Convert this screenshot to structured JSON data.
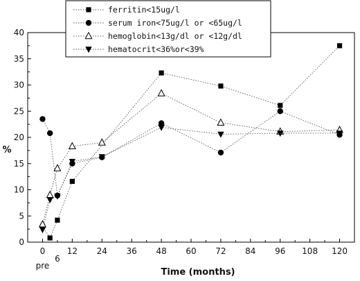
{
  "chart_data": {
    "type": "line",
    "title": "",
    "xlabel": "Time (months)",
    "ylabel": "%",
    "xlim": [
      -6,
      126
    ],
    "ylim": [
      0,
      40
    ],
    "xticks": [
      0,
      12,
      24,
      36,
      48,
      60,
      72,
      84,
      96,
      108,
      120
    ],
    "yticks": [
      0,
      5,
      10,
      15,
      20,
      25,
      30,
      35,
      40
    ],
    "extra_x_labels": [
      {
        "text": "pre",
        "x": 0
      },
      {
        "text": "6",
        "x": 6
      }
    ],
    "grid": false,
    "legend_position": "top-center",
    "series": [
      {
        "name": "ferritin<15ug/l",
        "marker": "square",
        "x": [
          0,
          3,
          6,
          12,
          48,
          72,
          96,
          120
        ],
        "y": [
          3.0,
          0.8,
          4.2,
          11.6,
          32.3,
          29.8,
          26.1,
          37.5
        ]
      },
      {
        "name": "serum iron<75ug/l or <65ug/l",
        "marker": "circle",
        "x": [
          0,
          3,
          6,
          12,
          24,
          48,
          72,
          96,
          120
        ],
        "y": [
          23.5,
          20.8,
          8.9,
          15.0,
          16.2,
          22.7,
          17.1,
          25.0,
          20.5
        ]
      },
      {
        "name": "hemoglobin<13g/dl or <12g/dl",
        "marker": "triangle-open",
        "x": [
          0,
          3,
          6,
          12,
          24,
          48,
          72,
          96,
          120
        ],
        "y": [
          3.4,
          9.0,
          14.1,
          18.3,
          19.0,
          28.4,
          22.8,
          21.1,
          21.4
        ]
      },
      {
        "name": "hematocrit<36%or<39%",
        "marker": "triangle-down",
        "x": [
          0,
          3,
          6,
          12,
          24,
          48,
          72,
          96,
          120
        ],
        "y": [
          2.4,
          8.1,
          8.8,
          15.4,
          16.3,
          21.9,
          20.6,
          20.8,
          20.8
        ]
      }
    ]
  }
}
